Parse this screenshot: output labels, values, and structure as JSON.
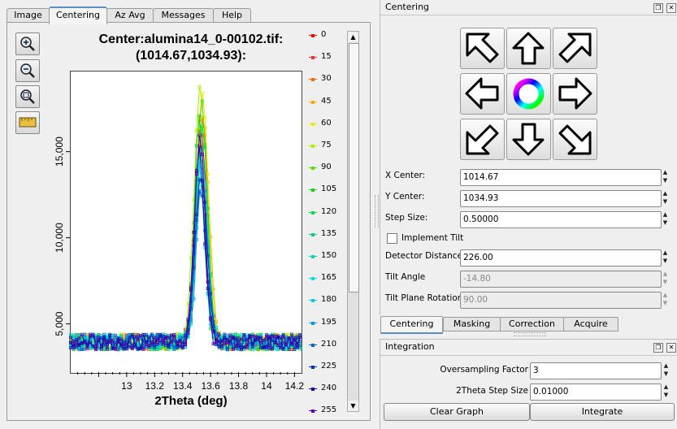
{
  "tabs": [
    "Image",
    "Centering",
    "Az Avg",
    "Messages",
    "Help"
  ],
  "active_tab": "Centering",
  "plot": {
    "title_line1": "Center:alumina14_0-00102.tif:",
    "title_line2": "(1014.67,1034.93):"
  },
  "chart_data": {
    "type": "line",
    "xlabel": "2Theta (deg)",
    "ylabel": "",
    "xlim": [
      12.6,
      14.25
    ],
    "ylim": [
      2200,
      19700
    ],
    "x_ticks": [
      "13",
      "13.2",
      "13.4",
      "13.6",
      "13.8",
      "14",
      "14.2"
    ],
    "y_ticks": [
      "5,000",
      "10,000",
      "15,000"
    ],
    "peak_center": 13.53,
    "baseline": 4000,
    "series": [
      {
        "name": "0",
        "color": "#ff0000",
        "peak": 16500
      },
      {
        "name": "15",
        "color": "#ff3030",
        "peak": 16000
      },
      {
        "name": "30",
        "color": "#ff6a00",
        "peak": 17000
      },
      {
        "name": "45",
        "color": "#ffaa00",
        "peak": 17500
      },
      {
        "name": "60",
        "color": "#e8e800",
        "peak": 18500
      },
      {
        "name": "75",
        "color": "#aaee00",
        "peak": 19000
      },
      {
        "name": "90",
        "color": "#55dd00",
        "peak": 18000
      },
      {
        "name": "105",
        "color": "#20cc20",
        "peak": 17000
      },
      {
        "name": "120",
        "color": "#00dd44",
        "peak": 16500
      },
      {
        "name": "135",
        "color": "#00cc88",
        "peak": 15500
      },
      {
        "name": "150",
        "color": "#00ccbb",
        "peak": 15000
      },
      {
        "name": "165",
        "color": "#00dddd",
        "peak": 14500
      },
      {
        "name": "180",
        "color": "#00ccee",
        "peak": 14000
      },
      {
        "name": "195",
        "color": "#0099dd",
        "peak": 13500
      },
      {
        "name": "210",
        "color": "#0066cc",
        "peak": 13000
      },
      {
        "name": "225",
        "color": "#0033bb",
        "peak": 14000
      },
      {
        "name": "240",
        "color": "#2200aa",
        "peak": 15000
      },
      {
        "name": "255",
        "color": "#5500aa",
        "peak": 16000
      }
    ]
  },
  "centering": {
    "header": "Centering",
    "arrows": [
      "up-left",
      "up",
      "up-right",
      "left",
      "color-wheel",
      "right",
      "down-left",
      "down",
      "down-right"
    ],
    "fields": [
      {
        "label": "X Center:",
        "value": "1014.67",
        "enabled": true
      },
      {
        "label": "Y Center:",
        "value": "1034.93",
        "enabled": true
      },
      {
        "label": "Step Size:",
        "value": "0.50000",
        "enabled": true
      }
    ],
    "implement_tilt_label": "Implement Tilt",
    "implement_tilt_checked": false,
    "tilt_fields": [
      {
        "label": "Detector Distance",
        "value": "226.00",
        "enabled": true
      },
      {
        "label": "Tilt Angle",
        "value": "-14.80",
        "enabled": false
      },
      {
        "label": "Tilt Plane Rotation",
        "value": "90.00",
        "enabled": false
      }
    ]
  },
  "bottom_tabs": [
    "Centering",
    "Masking",
    "Correction",
    "Acquire"
  ],
  "active_bottom_tab": "Centering",
  "integration": {
    "header": "Integration",
    "fields": [
      {
        "label": "Oversampling Factor",
        "value": "3"
      },
      {
        "label": "2Theta Step Size",
        "value": "0.01000"
      }
    ],
    "clear_graph": "Clear Graph",
    "integrate": "Integrate"
  }
}
